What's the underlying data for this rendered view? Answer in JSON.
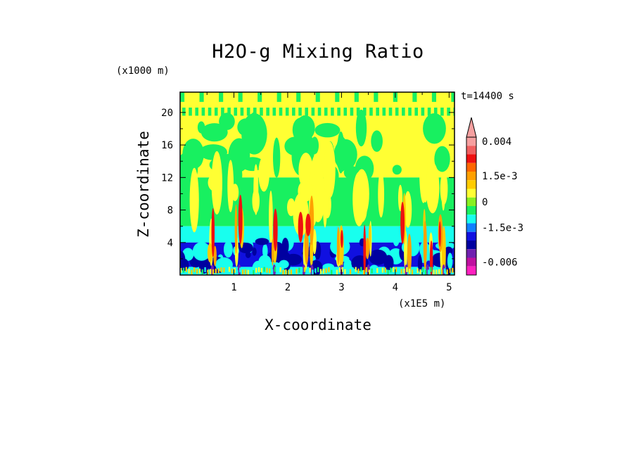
{
  "chart_data": {
    "type": "heatmap",
    "title": "H2O-g Mixing Ratio",
    "xlabel": "X-coordinate",
    "ylabel": "Z-coordinate",
    "x_unit": "(x1E5 m)",
    "y_unit": "(x1000 m)",
    "annotation": "t=14400 s",
    "xlim": [
      0,
      5.1
    ],
    "ylim": [
      0,
      22.5
    ],
    "x_ticks": [
      1,
      2,
      3,
      4,
      5
    ],
    "y_ticks": [
      4,
      8,
      12,
      16,
      20
    ],
    "colorbar": {
      "labels": [
        {
          "text": "0.004",
          "value": 0.004
        },
        {
          "text": "1.5e-3",
          "value": 0.0015
        },
        {
          "text": "0",
          "value": 0
        },
        {
          "text": "-1.5e-3",
          "value": -0.0015
        },
        {
          "text": "-0.006",
          "value": -0.006
        }
      ],
      "levels": [
        {
          "from": 0.004,
          "color": "#f6a0a0"
        },
        {
          "from": 0.003,
          "color": "#f06060"
        },
        {
          "from": 0.0025,
          "color": "#ee1010"
        },
        {
          "from": 0.002,
          "color": "#ff6600"
        },
        {
          "from": 0.0015,
          "color": "#ffa000"
        },
        {
          "from": 0.001,
          "color": "#ffcc00"
        },
        {
          "from": 0.0005,
          "color": "#ffff33"
        },
        {
          "from": 0,
          "color": "#88f020"
        },
        {
          "from": -0.0005,
          "color": "#18f060"
        },
        {
          "from": -0.001,
          "color": "#18ffee"
        },
        {
          "from": -0.0015,
          "color": "#1080ff"
        },
        {
          "from": -0.002,
          "color": "#1010e0"
        },
        {
          "from": -0.003,
          "color": "#0000a0"
        },
        {
          "from": -0.0045,
          "color": "#7020b0"
        },
        {
          "from": -0.006,
          "color": "#c010a0"
        },
        {
          "from": -0.0075,
          "color": "#ff20c0"
        }
      ]
    },
    "field_bands": [
      {
        "z_from": 20.5,
        "z_to": 22.5,
        "level": 0.0005,
        "note": "banded green/yellow top"
      },
      {
        "z_from": 12,
        "z_to": 20.5,
        "level": 0.0005
      },
      {
        "z_from": 6,
        "z_to": 12,
        "level": -0.0005
      },
      {
        "z_from": 4,
        "z_to": 6,
        "level": -0.001
      },
      {
        "z_from": 1,
        "z_to": 4,
        "level": -0.002
      },
      {
        "z_from": 0,
        "z_to": 1,
        "level": -0.001
      }
    ],
    "plumes_x": [
      0.6,
      1.1,
      1.75,
      2.3,
      2.45,
      3.0,
      3.5,
      4.2,
      4.6,
      4.9
    ]
  }
}
